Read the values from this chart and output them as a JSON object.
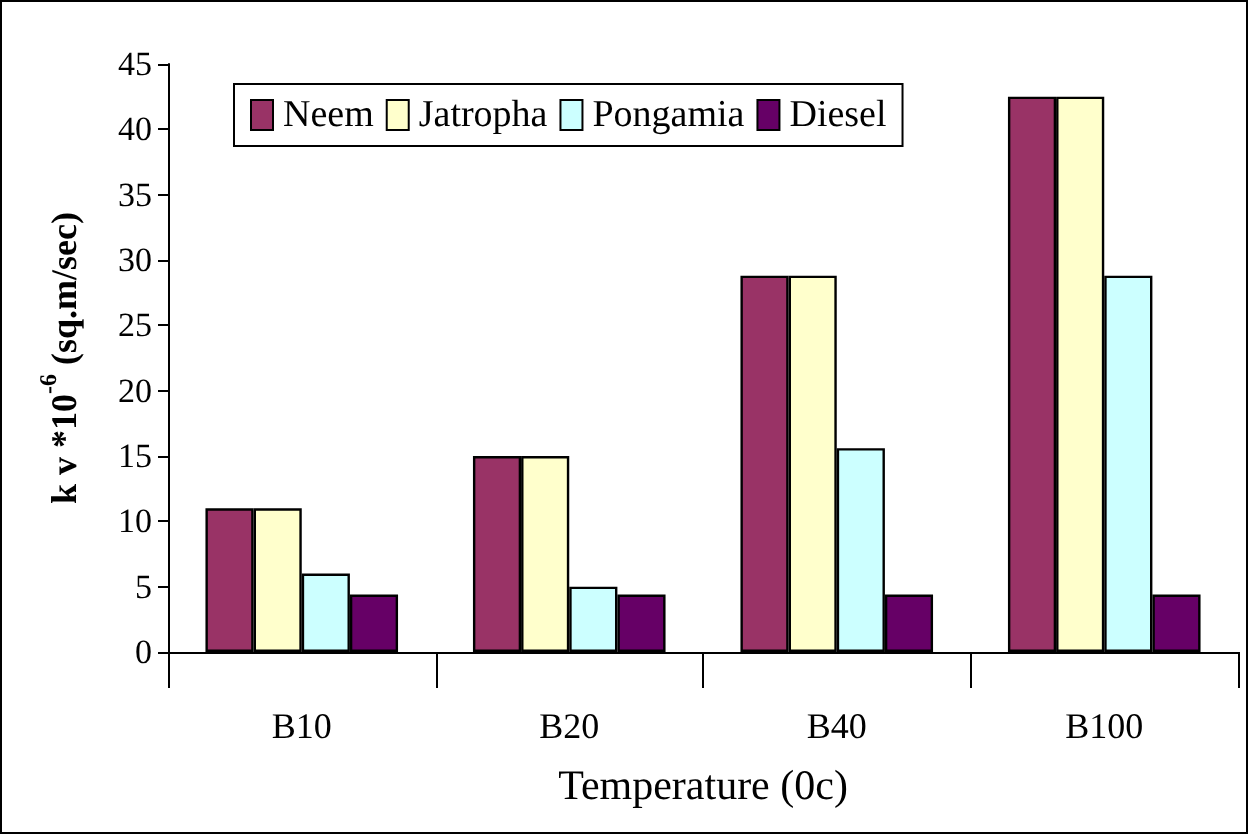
{
  "chart_data": {
    "type": "bar",
    "xlabel": "Temperature (0c)",
    "ylabel": "k v *10$^{-6}$ (sq.m/sec)",
    "categories": [
      "B10",
      "B20",
      "B40",
      "B100"
    ],
    "series": [
      {
        "name": "Neem",
        "color": "#993366",
        "values": [
          11.0,
          15.0,
          28.8,
          42.5
        ]
      },
      {
        "name": "Jatropha",
        "color": "#ffffcc",
        "values": [
          11.0,
          15.0,
          28.8,
          42.5
        ]
      },
      {
        "name": "Pongamia",
        "color": "#ccffff",
        "values": [
          6.0,
          5.0,
          15.6,
          28.8
        ]
      },
      {
        "name": "Diesel",
        "color": "#660066",
        "values": [
          4.4,
          4.4,
          4.4,
          4.4
        ]
      }
    ],
    "ylim": [
      0,
      45
    ],
    "yticks": [
      0,
      5,
      10,
      15,
      20,
      25,
      30,
      35,
      40,
      45
    ],
    "grid": false,
    "legend": "top left"
  }
}
